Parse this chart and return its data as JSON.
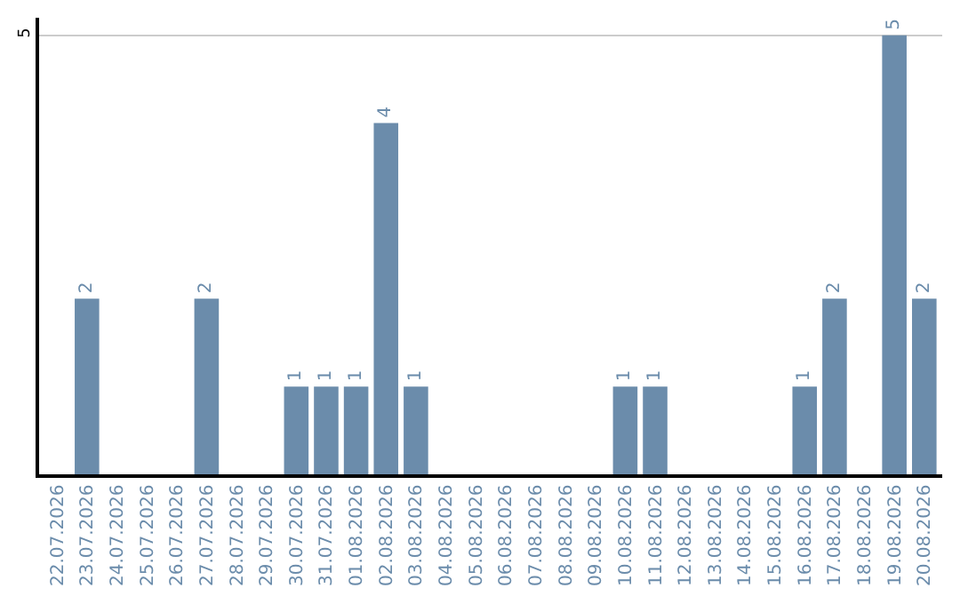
{
  "chart_data": {
    "type": "bar",
    "categories": [
      "22.07.2026",
      "23.07.2026",
      "24.07.2026",
      "25.07.2026",
      "26.07.2026",
      "27.07.2026",
      "28.07.2026",
      "29.07.2026",
      "30.07.2026",
      "31.07.2026",
      "01.08.2026",
      "02.08.2026",
      "03.08.2026",
      "04.08.2026",
      "05.08.2026",
      "06.08.2026",
      "07.08.2026",
      "08.08.2026",
      "09.08.2026",
      "10.08.2026",
      "11.08.2026",
      "12.08.2026",
      "13.08.2026",
      "14.08.2026",
      "15.08.2026",
      "16.08.2026",
      "17.08.2026",
      "18.08.2026",
      "19.08.2026",
      "20.08.2026"
    ],
    "values": [
      0,
      2,
      0,
      0,
      0,
      2,
      0,
      0,
      1,
      1,
      1,
      4,
      1,
      0,
      0,
      0,
      0,
      0,
      0,
      1,
      1,
      0,
      0,
      0,
      0,
      1,
      2,
      0,
      5,
      2
    ],
    "value_labels": [
      null,
      "2",
      null,
      null,
      null,
      "2",
      null,
      null,
      "1",
      "1",
      "1",
      "4",
      "1",
      null,
      null,
      null,
      null,
      null,
      null,
      "1",
      "1",
      null,
      null,
      null,
      null,
      "1",
      "2",
      null,
      "5",
      "2"
    ],
    "color": "#6b8cab",
    "ylim": [
      0,
      5.2
    ],
    "yticks": [
      0,
      5
    ],
    "grid": "y",
    "legend": false
  }
}
